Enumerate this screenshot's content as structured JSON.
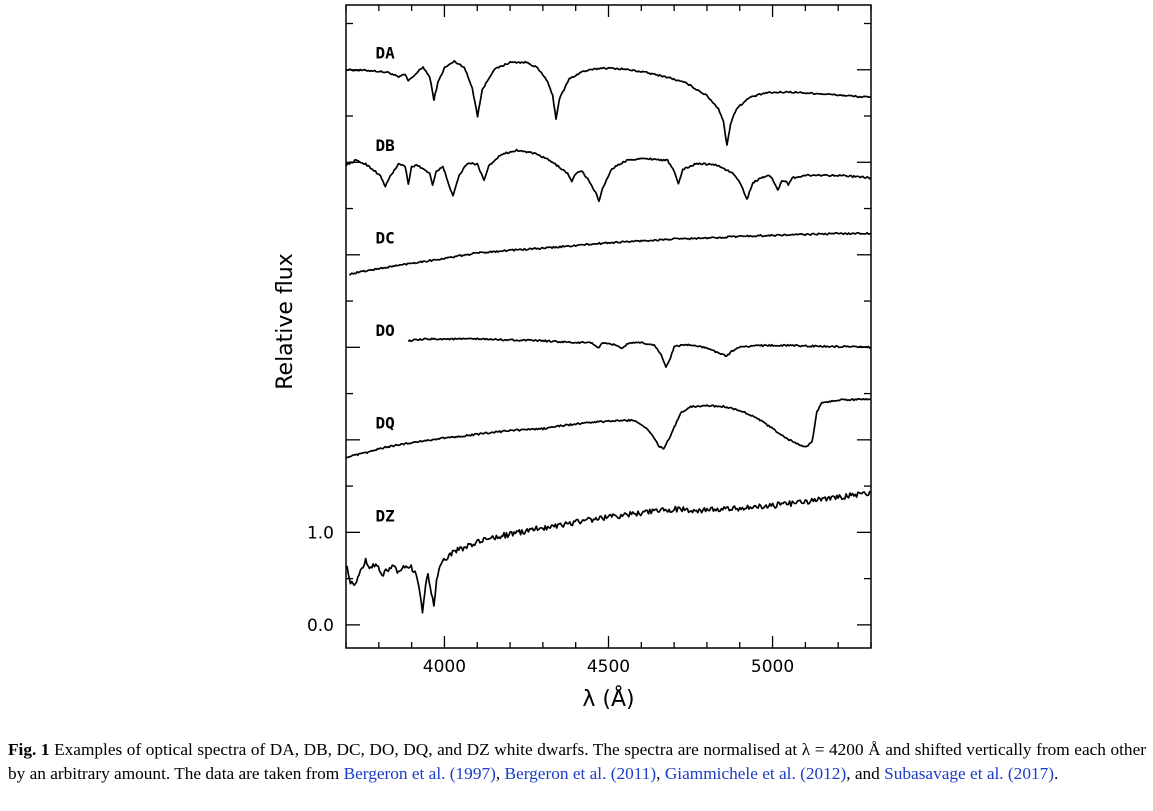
{
  "chart_data": {
    "type": "line",
    "xlabel": "λ (Å)",
    "ylabel": "Relative flux",
    "xlim": [
      3700,
      5300
    ],
    "ylim": [
      -0.25,
      6.7
    ],
    "x_ticks": [
      4000,
      4500,
      5000
    ],
    "x_tick_labels": [
      "4000",
      "4500",
      "5000"
    ],
    "y_ticks": [
      0.0,
      1.0
    ],
    "y_tick_labels": [
      "0.0",
      "1.0"
    ],
    "y_minor_step": 0.5,
    "grid": false,
    "legend": "none",
    "series": [
      {
        "name": "DA",
        "label_at": [
          3790,
          6.12
        ],
        "points": [
          [
            3700,
            6.0
          ],
          [
            3780,
            5.99
          ],
          [
            3830,
            5.97
          ],
          [
            3860,
            5.92
          ],
          [
            3880,
            5.95
          ],
          [
            3890,
            5.88
          ],
          [
            3905,
            5.93
          ],
          [
            3935,
            6.03
          ],
          [
            3955,
            5.92
          ],
          [
            3968,
            5.68
          ],
          [
            3980,
            5.86
          ],
          [
            4000,
            6.02
          ],
          [
            4030,
            6.09
          ],
          [
            4060,
            6.03
          ],
          [
            4085,
            5.8
          ],
          [
            4101,
            5.5
          ],
          [
            4115,
            5.78
          ],
          [
            4150,
            6.0
          ],
          [
            4200,
            6.08
          ],
          [
            4250,
            6.08
          ],
          [
            4280,
            6.03
          ],
          [
            4310,
            5.9
          ],
          [
            4330,
            5.72
          ],
          [
            4340,
            5.47
          ],
          [
            4350,
            5.68
          ],
          [
            4380,
            5.9
          ],
          [
            4420,
            5.98
          ],
          [
            4480,
            6.02
          ],
          [
            4540,
            6.01
          ],
          [
            4600,
            5.98
          ],
          [
            4680,
            5.92
          ],
          [
            4740,
            5.85
          ],
          [
            4800,
            5.72
          ],
          [
            4835,
            5.58
          ],
          [
            4850,
            5.45
          ],
          [
            4861,
            5.18
          ],
          [
            4872,
            5.42
          ],
          [
            4890,
            5.58
          ],
          [
            4930,
            5.7
          ],
          [
            4980,
            5.75
          ],
          [
            5050,
            5.76
          ],
          [
            5150,
            5.74
          ],
          [
            5300,
            5.7
          ]
        ]
      },
      {
        "name": "DB",
        "label_at": [
          3790,
          5.12
        ],
        "points": [
          [
            3700,
            4.97
          ],
          [
            3730,
            5.02
          ],
          [
            3760,
            4.98
          ],
          [
            3790,
            4.9
          ],
          [
            3805,
            4.85
          ],
          [
            3820,
            4.74
          ],
          [
            3835,
            4.85
          ],
          [
            3860,
            4.98
          ],
          [
            3880,
            4.96
          ],
          [
            3890,
            4.76
          ],
          [
            3900,
            4.95
          ],
          [
            3915,
            4.97
          ],
          [
            3940,
            4.92
          ],
          [
            3955,
            4.88
          ],
          [
            3964,
            4.76
          ],
          [
            3975,
            4.9
          ],
          [
            3995,
            4.95
          ],
          [
            4010,
            4.8
          ],
          [
            4026,
            4.63
          ],
          [
            4045,
            4.86
          ],
          [
            4070,
            4.99
          ],
          [
            4100,
            4.98
          ],
          [
            4110,
            4.9
          ],
          [
            4121,
            4.81
          ],
          [
            4135,
            4.96
          ],
          [
            4170,
            5.08
          ],
          [
            4220,
            5.13
          ],
          [
            4270,
            5.1
          ],
          [
            4310,
            5.04
          ],
          [
            4350,
            4.95
          ],
          [
            4375,
            4.88
          ],
          [
            4388,
            4.79
          ],
          [
            4400,
            4.88
          ],
          [
            4420,
            4.9
          ],
          [
            4440,
            4.8
          ],
          [
            4460,
            4.68
          ],
          [
            4471,
            4.58
          ],
          [
            4482,
            4.72
          ],
          [
            4510,
            4.93
          ],
          [
            4560,
            5.03
          ],
          [
            4620,
            5.04
          ],
          [
            4680,
            5.02
          ],
          [
            4700,
            4.9
          ],
          [
            4713,
            4.77
          ],
          [
            4726,
            4.92
          ],
          [
            4770,
            4.99
          ],
          [
            4830,
            4.97
          ],
          [
            4880,
            4.88
          ],
          [
            4905,
            4.75
          ],
          [
            4922,
            4.6
          ],
          [
            4940,
            4.78
          ],
          [
            4970,
            4.84
          ],
          [
            4990,
            4.86
          ],
          [
            5003,
            4.8
          ],
          [
            5016,
            4.7
          ],
          [
            5028,
            4.8
          ],
          [
            5040,
            4.8
          ],
          [
            5048,
            4.75
          ],
          [
            5060,
            4.83
          ],
          [
            5100,
            4.86
          ],
          [
            5200,
            4.86
          ],
          [
            5300,
            4.83
          ]
        ]
      },
      {
        "name": "DC",
        "label_at": [
          3790,
          4.12
        ],
        "points": [
          [
            3710,
            3.79
          ],
          [
            3750,
            3.82
          ],
          [
            3800,
            3.85
          ],
          [
            3900,
            3.91
          ],
          [
            4000,
            3.96
          ],
          [
            4100,
            4.02
          ],
          [
            4200,
            4.05
          ],
          [
            4300,
            4.07
          ],
          [
            4400,
            4.1
          ],
          [
            4500,
            4.13
          ],
          [
            4600,
            4.15
          ],
          [
            4700,
            4.17
          ],
          [
            4800,
            4.18
          ],
          [
            4900,
            4.2
          ],
          [
            5000,
            4.21
          ],
          [
            5100,
            4.22
          ],
          [
            5200,
            4.23
          ],
          [
            5300,
            4.23
          ]
        ]
      },
      {
        "name": "DO",
        "label_at": [
          3790,
          3.12
        ],
        "points": [
          [
            3890,
            3.07
          ],
          [
            3950,
            3.09
          ],
          [
            4000,
            3.09
          ],
          [
            4100,
            3.09
          ],
          [
            4200,
            3.08
          ],
          [
            4300,
            3.07
          ],
          [
            4350,
            3.06
          ],
          [
            4400,
            3.05
          ],
          [
            4450,
            3.05
          ],
          [
            4468,
            2.99
          ],
          [
            4480,
            3.04
          ],
          [
            4520,
            3.03
          ],
          [
            4541,
            2.99
          ],
          [
            4560,
            3.04
          ],
          [
            4600,
            3.05
          ],
          [
            4640,
            3.02
          ],
          [
            4660,
            2.93
          ],
          [
            4675,
            2.78
          ],
          [
            4686,
            2.86
          ],
          [
            4700,
            3.01
          ],
          [
            4740,
            3.03
          ],
          [
            4790,
            3.0
          ],
          [
            4830,
            2.95
          ],
          [
            4860,
            2.9
          ],
          [
            4875,
            2.96
          ],
          [
            4900,
            3.0
          ],
          [
            4950,
            3.02
          ],
          [
            5050,
            3.02
          ],
          [
            5150,
            3.01
          ],
          [
            5300,
            3.0
          ]
        ]
      },
      {
        "name": "DQ",
        "label_at": [
          3790,
          2.12
        ],
        "points": [
          [
            3700,
            1.81
          ],
          [
            3760,
            1.86
          ],
          [
            3820,
            1.92
          ],
          [
            3900,
            1.97
          ],
          [
            4000,
            2.02
          ],
          [
            4100,
            2.06
          ],
          [
            4200,
            2.1
          ],
          [
            4300,
            2.12
          ],
          [
            4350,
            2.15
          ],
          [
            4400,
            2.17
          ],
          [
            4450,
            2.19
          ],
          [
            4500,
            2.2
          ],
          [
            4550,
            2.21
          ],
          [
            4580,
            2.21
          ],
          [
            4600,
            2.17
          ],
          [
            4630,
            2.07
          ],
          [
            4655,
            1.93
          ],
          [
            4668,
            1.9
          ],
          [
            4680,
            1.98
          ],
          [
            4700,
            2.13
          ],
          [
            4720,
            2.29
          ],
          [
            4750,
            2.36
          ],
          [
            4800,
            2.37
          ],
          [
            4850,
            2.36
          ],
          [
            4900,
            2.32
          ],
          [
            4950,
            2.24
          ],
          [
            5000,
            2.12
          ],
          [
            5050,
            2.0
          ],
          [
            5100,
            1.92
          ],
          [
            5120,
            1.97
          ],
          [
            5135,
            2.3
          ],
          [
            5150,
            2.4
          ],
          [
            5200,
            2.43
          ],
          [
            5300,
            2.44
          ]
        ]
      },
      {
        "name": "DZ",
        "label_at": [
          3790,
          1.12
        ],
        "points": [
          [
            3700,
            0.66
          ],
          [
            3710,
            0.5
          ],
          [
            3725,
            0.4
          ],
          [
            3740,
            0.55
          ],
          [
            3760,
            0.7
          ],
          [
            3775,
            0.62
          ],
          [
            3795,
            0.65
          ],
          [
            3810,
            0.53
          ],
          [
            3825,
            0.59
          ],
          [
            3845,
            0.66
          ],
          [
            3860,
            0.55
          ],
          [
            3875,
            0.61
          ],
          [
            3895,
            0.64
          ],
          [
            3910,
            0.56
          ],
          [
            3922,
            0.42
          ],
          [
            3933,
            0.15
          ],
          [
            3943,
            0.45
          ],
          [
            3950,
            0.55
          ],
          [
            3960,
            0.35
          ],
          [
            3968,
            0.2
          ],
          [
            3976,
            0.48
          ],
          [
            3990,
            0.66
          ],
          [
            4010,
            0.74
          ],
          [
            4040,
            0.81
          ],
          [
            4080,
            0.86
          ],
          [
            4120,
            0.92
          ],
          [
            4170,
            0.96
          ],
          [
            4220,
            0.99
          ],
          [
            4280,
            1.04
          ],
          [
            4350,
            1.08
          ],
          [
            4450,
            1.14
          ],
          [
            4550,
            1.19
          ],
          [
            4650,
            1.23
          ],
          [
            4700,
            1.25
          ],
          [
            4800,
            1.24
          ],
          [
            4900,
            1.26
          ],
          [
            5000,
            1.29
          ],
          [
            5100,
            1.33
          ],
          [
            5200,
            1.38
          ],
          [
            5300,
            1.43
          ]
        ]
      }
    ]
  },
  "caption": {
    "fig_label": "Fig. 1",
    "part1": " Examples of optical spectra of DA, DB, DC, DO, DQ, and DZ white dwarfs. The spectra are normalised at λ = 4200 Å and shifted vertically from each other by an arbitrary amount. The data are taken from ",
    "cite1": "Bergeron et al. (1997)",
    "sep1": ", ",
    "cite2": "Bergeron et al. (2011)",
    "sep2": ", ",
    "cite3": "Giammichele et al. (2012)",
    "sep3": ", and ",
    "cite4": "Subasavage et al. (2017)",
    "end": "."
  }
}
